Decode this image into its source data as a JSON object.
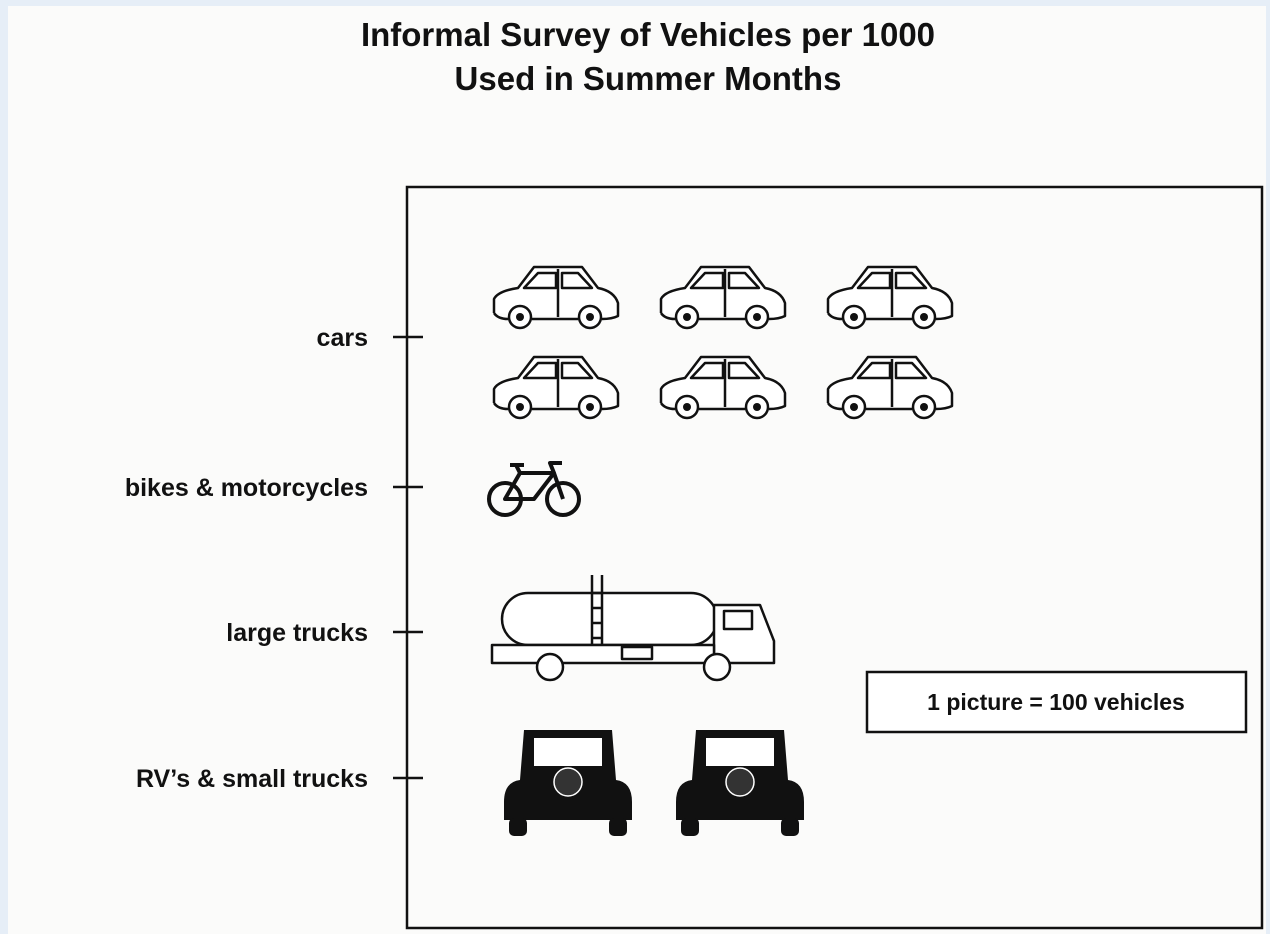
{
  "chart_data": {
    "type": "pictograph",
    "title": [
      "Informal Survey of Vehicles per 1000",
      "Used in Summer Months"
    ],
    "categories": [
      "cars",
      "bikes & motorcycles",
      "large trucks",
      "RV’s & small trucks"
    ],
    "values": [
      600,
      100,
      100,
      200
    ],
    "picture_value": 100,
    "key": "1 picture = 100 vehicles"
  }
}
